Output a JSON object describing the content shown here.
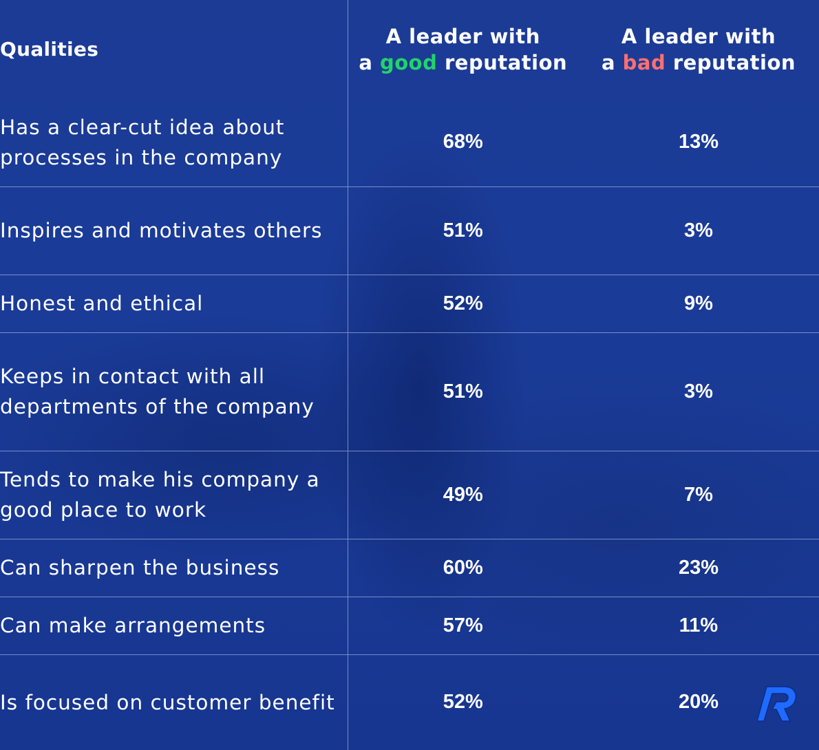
{
  "chart_data": {
    "type": "table",
    "columns": [
      {
        "text": "Qualities"
      },
      {
        "line1": "A leader with",
        "prefix": "a",
        "highlight": "good",
        "suffix": "reputation",
        "highlight_color": "#22d36a"
      },
      {
        "line1": "A leader with",
        "prefix": "a",
        "highlight": "bad",
        "suffix": "reputation",
        "highlight_color": "#ff6f6f"
      }
    ],
    "rows": [
      {
        "quality": "Has a clear-cut idea about processes in the company",
        "good": "68%",
        "bad": "13%"
      },
      {
        "quality": "Inspires and motivates others",
        "good": "51%",
        "bad": "3%"
      },
      {
        "quality": "Honest and ethical",
        "good": "52%",
        "bad": "9%"
      },
      {
        "quality": "Keeps in contact with all departments of the company",
        "good": "51%",
        "bad": "3%"
      },
      {
        "quality": "Tends to make his company a good place to work",
        "good": "49%",
        "bad": "7%"
      },
      {
        "quality": "Can sharpen the business",
        "good": "60%",
        "bad": "23%"
      },
      {
        "quality": "Can make arrangements",
        "good": "57%",
        "bad": "11%"
      },
      {
        "quality": "Is focused on customer benefit",
        "good": "52%",
        "bad": "20%"
      }
    ]
  },
  "branding": {
    "logo_icon": "r-logo-icon",
    "logo_color": "#1f6bff",
    "logo_letter": "R"
  }
}
